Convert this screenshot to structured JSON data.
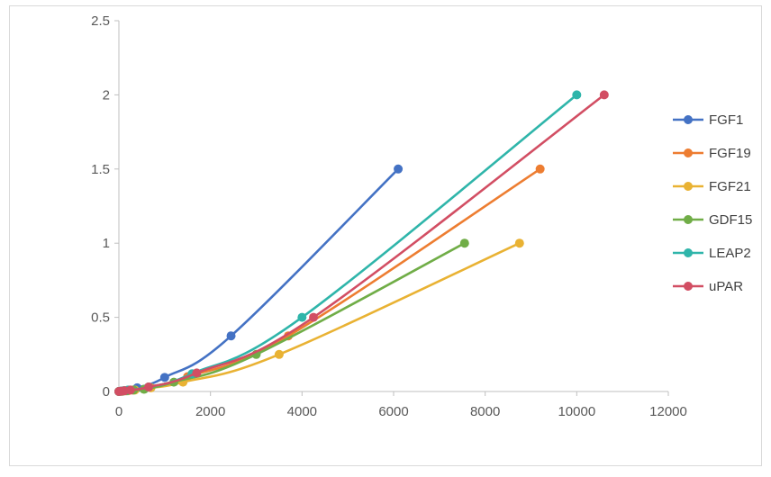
{
  "chart_data": {
    "type": "line",
    "title": "",
    "xlabel": "",
    "ylabel": "",
    "xlim": [
      0,
      12000
    ],
    "ylim": [
      0,
      2.5
    ],
    "xticks": [
      0,
      2000,
      4000,
      6000,
      8000,
      10000,
      12000
    ],
    "yticks": [
      0,
      0.5,
      1,
      1.5,
      2,
      2.5
    ],
    "x_tick_labels": [
      "0",
      "2000",
      "4000",
      "6000",
      "8000",
      "10000",
      "12000"
    ],
    "y_tick_labels": [
      "0",
      "0.5",
      "1",
      "1.5",
      "2",
      "2.5"
    ],
    "grid": false,
    "legend_position": "right",
    "series": [
      {
        "name": "FGF1",
        "color": "#4472c4",
        "points": [
          [
            0,
            0
          ],
          [
            50,
            0.002
          ],
          [
            120,
            0.005
          ],
          [
            240,
            0.01
          ],
          [
            400,
            0.025
          ],
          [
            1000,
            0.095
          ],
          [
            2450,
            0.375
          ],
          [
            6100,
            1.5
          ]
        ]
      },
      {
        "name": "FGF19",
        "color": "#ed7d31",
        "points": [
          [
            0,
            0
          ],
          [
            60,
            0.002
          ],
          [
            150,
            0.005
          ],
          [
            300,
            0.01
          ],
          [
            650,
            0.03
          ],
          [
            1500,
            0.1
          ],
          [
            3700,
            0.375
          ],
          [
            9200,
            1.5
          ]
        ]
      },
      {
        "name": "FGF21",
        "color": "#e9b233",
        "points": [
          [
            0,
            0
          ],
          [
            80,
            0.002
          ],
          [
            200,
            0.005
          ],
          [
            350,
            0.01
          ],
          [
            700,
            0.025
          ],
          [
            1400,
            0.063
          ],
          [
            3500,
            0.25
          ],
          [
            8750,
            1.0
          ]
        ]
      },
      {
        "name": "GDF15",
        "color": "#70ad47",
        "points": [
          [
            0,
            0
          ],
          [
            70,
            0.002
          ],
          [
            170,
            0.005
          ],
          [
            320,
            0.01
          ],
          [
            550,
            0.015
          ],
          [
            1200,
            0.063
          ],
          [
            3000,
            0.25
          ],
          [
            7550,
            1.0
          ]
        ]
      },
      {
        "name": "LEAP2",
        "color": "#2fb5aa",
        "points": [
          [
            0,
            0
          ],
          [
            40,
            0.002
          ],
          [
            100,
            0.005
          ],
          [
            200,
            0.01
          ],
          [
            650,
            0.03
          ],
          [
            1600,
            0.12
          ],
          [
            4000,
            0.5
          ],
          [
            10000,
            2.0
          ]
        ]
      },
      {
        "name": "uPAR",
        "color": "#d24e63",
        "points": [
          [
            0,
            0
          ],
          [
            50,
            0.002
          ],
          [
            120,
            0.005
          ],
          [
            250,
            0.01
          ],
          [
            650,
            0.03
          ],
          [
            1700,
            0.125
          ],
          [
            4250,
            0.5
          ],
          [
            10600,
            2.0
          ]
        ]
      }
    ]
  }
}
